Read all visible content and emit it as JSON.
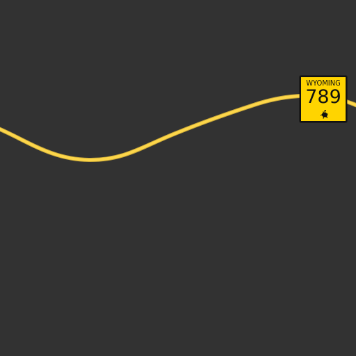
{
  "map": {
    "background_color": "#323232",
    "road_color": "#fdd64a",
    "road_edge_color": "#c9a838"
  },
  "route_shield": {
    "state_name": "WYOMING",
    "route_number": "789",
    "background_color": "#ffd400",
    "text_color": "#111111",
    "emblem": "bucking-horse-rider-icon"
  }
}
